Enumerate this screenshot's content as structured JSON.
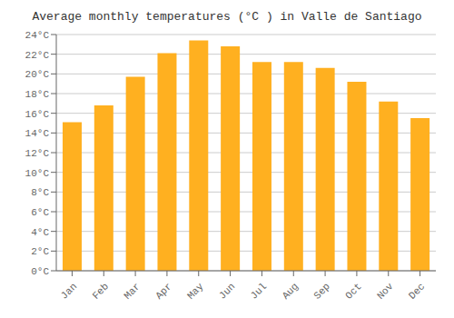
{
  "chart_data": {
    "type": "bar",
    "title": "Average monthly temperatures (°C ) in Valle de Santiago",
    "categories": [
      "Jan",
      "Feb",
      "Mar",
      "Apr",
      "May",
      "Jun",
      "Jul",
      "Aug",
      "Sep",
      "Oct",
      "Nov",
      "Dec"
    ],
    "values": [
      15.1,
      16.8,
      19.7,
      22.1,
      23.4,
      22.8,
      21.2,
      21.2,
      20.6,
      19.2,
      17.2,
      15.5
    ],
    "color": "#FFB020",
    "ylim": [
      0,
      24
    ],
    "yticks": [
      {
        "value": 0,
        "label": "0°C"
      },
      {
        "value": 2,
        "label": "2°C"
      },
      {
        "value": 4,
        "label": "4°C"
      },
      {
        "value": 6,
        "label": "6°C"
      },
      {
        "value": 8,
        "label": "8°C"
      },
      {
        "value": 10,
        "label": "10°C"
      },
      {
        "value": 12,
        "label": "12°C"
      },
      {
        "value": 14,
        "label": "14°C"
      },
      {
        "value": 16,
        "label": "16°C"
      },
      {
        "value": 18,
        "label": "18°C"
      },
      {
        "value": 20,
        "label": "20°C"
      },
      {
        "value": 22,
        "label": "22°C"
      },
      {
        "value": 24,
        "label": "24°C"
      }
    ],
    "grid": true
  }
}
